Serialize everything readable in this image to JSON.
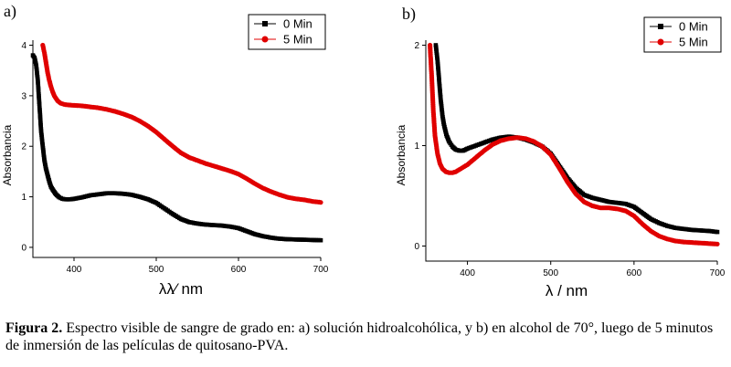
{
  "chart_data": [
    {
      "panel_label": "a)",
      "type": "scatter",
      "xlabel": "λλ⁄ nm",
      "ylabel": "Absorbancia",
      "xlim": [
        350,
        700
      ],
      "ylim": [
        -0.2,
        4.1
      ],
      "x_ticks": [
        400,
        500,
        600,
        700
      ],
      "y_ticks": [
        0,
        1,
        2,
        3,
        4
      ],
      "legend_position": "top-right",
      "series": [
        {
          "name": "0 Min",
          "color": "#000000",
          "marker": "square",
          "points": [
            [
              350,
              3.8
            ],
            [
              352,
              3.75
            ],
            [
              354,
              3.6
            ],
            [
              356,
              3.3
            ],
            [
              358,
              2.8
            ],
            [
              360,
              2.3
            ],
            [
              362,
              2.0
            ],
            [
              364,
              1.72
            ],
            [
              366,
              1.55
            ],
            [
              368,
              1.42
            ],
            [
              370,
              1.3
            ],
            [
              372,
              1.2
            ],
            [
              375,
              1.12
            ],
            [
              378,
              1.05
            ],
            [
              382,
              0.99
            ],
            [
              386,
              0.96
            ],
            [
              390,
              0.95
            ],
            [
              395,
              0.95
            ],
            [
              400,
              0.96
            ],
            [
              410,
              0.99
            ],
            [
              420,
              1.03
            ],
            [
              430,
              1.05
            ],
            [
              440,
              1.07
            ],
            [
              450,
              1.07
            ],
            [
              460,
              1.06
            ],
            [
              470,
              1.04
            ],
            [
              480,
              1.0
            ],
            [
              490,
              0.95
            ],
            [
              500,
              0.88
            ],
            [
              510,
              0.77
            ],
            [
              520,
              0.66
            ],
            [
              530,
              0.56
            ],
            [
              540,
              0.5
            ],
            [
              550,
              0.47
            ],
            [
              560,
              0.45
            ],
            [
              570,
              0.44
            ],
            [
              580,
              0.43
            ],
            [
              590,
              0.41
            ],
            [
              600,
              0.38
            ],
            [
              610,
              0.32
            ],
            [
              620,
              0.26
            ],
            [
              630,
              0.22
            ],
            [
              640,
              0.19
            ],
            [
              650,
              0.17
            ],
            [
              660,
              0.16
            ],
            [
              670,
              0.155
            ],
            [
              680,
              0.15
            ],
            [
              690,
              0.145
            ],
            [
              700,
              0.14
            ]
          ]
        },
        {
          "name": "5 Min",
          "color": "#e00000",
          "marker": "circle",
          "points": [
            [
              362,
              4.0
            ],
            [
              364,
              3.85
            ],
            [
              366,
              3.65
            ],
            [
              368,
              3.45
            ],
            [
              370,
              3.3
            ],
            [
              372,
              3.18
            ],
            [
              374,
              3.08
            ],
            [
              376,
              3.0
            ],
            [
              378,
              2.95
            ],
            [
              380,
              2.9
            ],
            [
              384,
              2.85
            ],
            [
              388,
              2.83
            ],
            [
              392,
              2.82
            ],
            [
              400,
              2.81
            ],
            [
              410,
              2.8
            ],
            [
              420,
              2.78
            ],
            [
              430,
              2.76
            ],
            [
              440,
              2.73
            ],
            [
              450,
              2.69
            ],
            [
              460,
              2.64
            ],
            [
              470,
              2.58
            ],
            [
              480,
              2.5
            ],
            [
              490,
              2.4
            ],
            [
              500,
              2.28
            ],
            [
              510,
              2.14
            ],
            [
              520,
              2.0
            ],
            [
              530,
              1.87
            ],
            [
              540,
              1.78
            ],
            [
              550,
              1.72
            ],
            [
              560,
              1.66
            ],
            [
              570,
              1.61
            ],
            [
              580,
              1.56
            ],
            [
              590,
              1.51
            ],
            [
              600,
              1.45
            ],
            [
              610,
              1.36
            ],
            [
              620,
              1.26
            ],
            [
              630,
              1.17
            ],
            [
              640,
              1.1
            ],
            [
              650,
              1.04
            ],
            [
              660,
              0.99
            ],
            [
              670,
              0.96
            ],
            [
              680,
              0.94
            ],
            [
              690,
              0.91
            ],
            [
              700,
              0.89
            ]
          ]
        }
      ]
    },
    {
      "panel_label": "b)",
      "type": "scatter",
      "xlabel": "λ / nm",
      "ylabel": "Absorbancia",
      "xlim": [
        350,
        700
      ],
      "ylim": [
        -0.15,
        2.05
      ],
      "x_ticks": [
        400,
        500,
        600,
        700
      ],
      "y_ticks": [
        0,
        1,
        2
      ],
      "legend_position": "top-right",
      "series": [
        {
          "name": "0 Min",
          "color": "#000000",
          "marker": "square",
          "points": [
            [
              362,
              2.0
            ],
            [
              364,
              1.85
            ],
            [
              366,
              1.65
            ],
            [
              368,
              1.45
            ],
            [
              370,
              1.3
            ],
            [
              372,
              1.2
            ],
            [
              375,
              1.1
            ],
            [
              378,
              1.04
            ],
            [
              382,
              0.99
            ],
            [
              386,
              0.96
            ],
            [
              390,
              0.95
            ],
            [
              395,
              0.95
            ],
            [
              400,
              0.97
            ],
            [
              410,
              1.0
            ],
            [
              420,
              1.03
            ],
            [
              430,
              1.06
            ],
            [
              440,
              1.08
            ],
            [
              450,
              1.09
            ],
            [
              460,
              1.08
            ],
            [
              470,
              1.06
            ],
            [
              480,
              1.03
            ],
            [
              490,
              0.99
            ],
            [
              500,
              0.92
            ],
            [
              510,
              0.8
            ],
            [
              520,
              0.68
            ],
            [
              530,
              0.58
            ],
            [
              540,
              0.51
            ],
            [
              550,
              0.48
            ],
            [
              560,
              0.46
            ],
            [
              570,
              0.44
            ],
            [
              580,
              0.43
            ],
            [
              590,
              0.42
            ],
            [
              600,
              0.39
            ],
            [
              610,
              0.33
            ],
            [
              620,
              0.27
            ],
            [
              630,
              0.23
            ],
            [
              640,
              0.2
            ],
            [
              650,
              0.18
            ],
            [
              660,
              0.17
            ],
            [
              670,
              0.16
            ],
            [
              680,
              0.155
            ],
            [
              690,
              0.15
            ],
            [
              700,
              0.14
            ]
          ]
        },
        {
          "name": "5 Min",
          "color": "#e00000",
          "marker": "circle",
          "points": [
            [
              355,
              2.0
            ],
            [
              357,
              1.7
            ],
            [
              359,
              1.35
            ],
            [
              361,
              1.1
            ],
            [
              364,
              0.92
            ],
            [
              367,
              0.82
            ],
            [
              370,
              0.77
            ],
            [
              374,
              0.74
            ],
            [
              378,
              0.73
            ],
            [
              382,
              0.73
            ],
            [
              386,
              0.74
            ],
            [
              390,
              0.76
            ],
            [
              400,
              0.81
            ],
            [
              410,
              0.88
            ],
            [
              420,
              0.95
            ],
            [
              430,
              1.01
            ],
            [
              440,
              1.05
            ],
            [
              450,
              1.07
            ],
            [
              460,
              1.08
            ],
            [
              470,
              1.07
            ],
            [
              480,
              1.04
            ],
            [
              490,
              0.99
            ],
            [
              500,
              0.91
            ],
            [
              510,
              0.78
            ],
            [
              520,
              0.64
            ],
            [
              530,
              0.52
            ],
            [
              540,
              0.44
            ],
            [
              550,
              0.4
            ],
            [
              560,
              0.38
            ],
            [
              570,
              0.38
            ],
            [
              580,
              0.37
            ],
            [
              590,
              0.35
            ],
            [
              600,
              0.3
            ],
            [
              610,
              0.22
            ],
            [
              620,
              0.15
            ],
            [
              630,
              0.1
            ],
            [
              640,
              0.07
            ],
            [
              650,
              0.05
            ],
            [
              660,
              0.04
            ],
            [
              670,
              0.035
            ],
            [
              680,
              0.03
            ],
            [
              690,
              0.025
            ],
            [
              700,
              0.02
            ]
          ]
        }
      ]
    }
  ],
  "caption": {
    "bold": "Figura 2.",
    "text": " Espectro visible de sangre de grado en: a) solución hidroalcohólica, y b) en alcohol de 70°, luego de 5 minutos de inmersión de las películas de quitosano-PVA."
  }
}
